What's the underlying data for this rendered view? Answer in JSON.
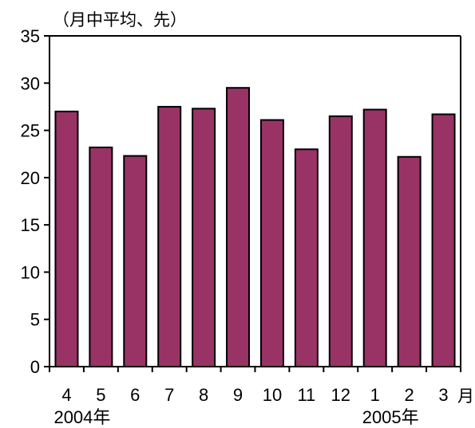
{
  "chart_data": {
    "type": "bar",
    "y_unit_label": "（月中平均、先）",
    "x_unit_label": "月",
    "categories": [
      "4",
      "5",
      "6",
      "7",
      "8",
      "9",
      "10",
      "11",
      "12",
      "1",
      "2",
      "3"
    ],
    "values": [
      27.0,
      23.2,
      22.3,
      27.5,
      27.3,
      29.5,
      26.1,
      23.0,
      26.5,
      27.2,
      22.2,
      26.7
    ],
    "year_labels": [
      {
        "text": "2004年",
        "category_index": 0
      },
      {
        "text": "2005年",
        "category_index": 9
      }
    ],
    "ylim": [
      0,
      35
    ],
    "yticks": [
      0,
      5,
      10,
      15,
      20,
      25,
      30,
      35
    ],
    "bar_color": "#993366",
    "grid": false
  }
}
